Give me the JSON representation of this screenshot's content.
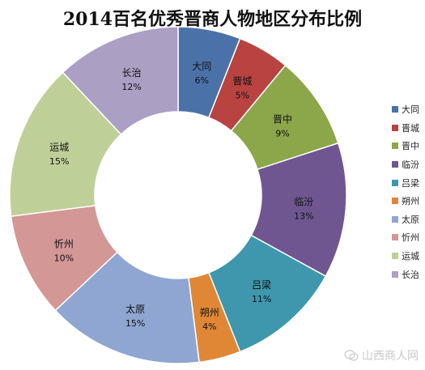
{
  "chart_data": {
    "type": "pie",
    "title": "2014百名优秀晋商人物地区分布比例",
    "style": "donut",
    "legend_position": "right",
    "slices": [
      {
        "label": "大同",
        "value": 6,
        "value_label": "6%",
        "color": "#4a72a8"
      },
      {
        "label": "晋城",
        "value": 5,
        "value_label": "5%",
        "color": "#b84340"
      },
      {
        "label": "晋中",
        "value": 9,
        "value_label": "9%",
        "color": "#8ca64a"
      },
      {
        "label": "临汾",
        "value": 13,
        "value_label": "13%",
        "color": "#6f5691"
      },
      {
        "label": "吕梁",
        "value": 11,
        "value_label": "11%",
        "color": "#3e97ad"
      },
      {
        "label": "朔州",
        "value": 4,
        "value_label": "4%",
        "color": "#e08736"
      },
      {
        "label": "太原",
        "value": 15,
        "value_label": "15%",
        "color": "#8ea6d1"
      },
      {
        "label": "忻州",
        "value": 10,
        "value_label": "10%",
        "color": "#d39796"
      },
      {
        "label": "运城",
        "value": 15,
        "value_label": "15%",
        "color": "#bed098"
      },
      {
        "label": "长治",
        "value": 12,
        "value_label": "12%",
        "color": "#ab9fc4"
      }
    ]
  },
  "watermark": {
    "text": "山西商人网",
    "icon": "wechat-icon"
  }
}
